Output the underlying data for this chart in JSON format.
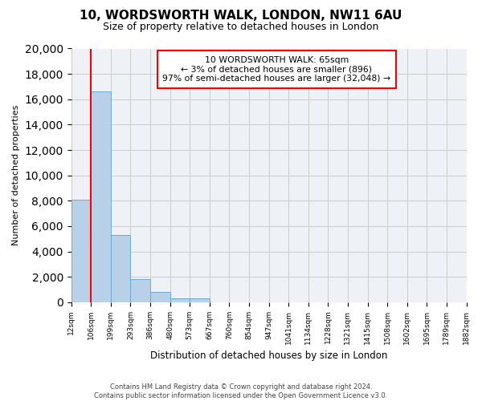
{
  "title": "10, WORDSWORTH WALK, LONDON, NW11 6AU",
  "subtitle": "Size of property relative to detached houses in London",
  "xlabel": "Distribution of detached houses by size in London",
  "ylabel": "Number of detached properties",
  "bar_values": [
    8100,
    16600,
    5300,
    1800,
    800,
    300,
    300,
    0,
    0,
    0,
    0,
    0,
    0,
    0,
    0,
    0,
    0,
    0,
    0,
    0
  ],
  "categories": [
    "12sqm",
    "106sqm",
    "199sqm",
    "293sqm",
    "386sqm",
    "480sqm",
    "573sqm",
    "667sqm",
    "760sqm",
    "854sqm",
    "947sqm",
    "1041sqm",
    "1134sqm",
    "1228sqm",
    "1321sqm",
    "1415sqm",
    "1508sqm",
    "1602sqm",
    "1695sqm",
    "1789sqm",
    "1882sqm"
  ],
  "bar_color": "#b8d0e8",
  "bar_edge_color": "#6aaad4",
  "ylim": [
    0,
    20000
  ],
  "yticks": [
    0,
    2000,
    4000,
    6000,
    8000,
    10000,
    12000,
    14000,
    16000,
    18000,
    20000
  ],
  "annotation_box_text": "10 WORDSWORTH WALK: 65sqm\n← 3% of detached houses are smaller (896)\n97% of semi-detached houses are larger (32,048) →",
  "red_line_x": 1,
  "footer_line1": "Contains HM Land Registry data © Crown copyright and database right 2024.",
  "footer_line2": "Contains public sector information licensed under the Open Government Licence v3.0.",
  "background_color": "#eef2f7",
  "plot_background": "#ffffff",
  "grid_color": "#cccccc"
}
